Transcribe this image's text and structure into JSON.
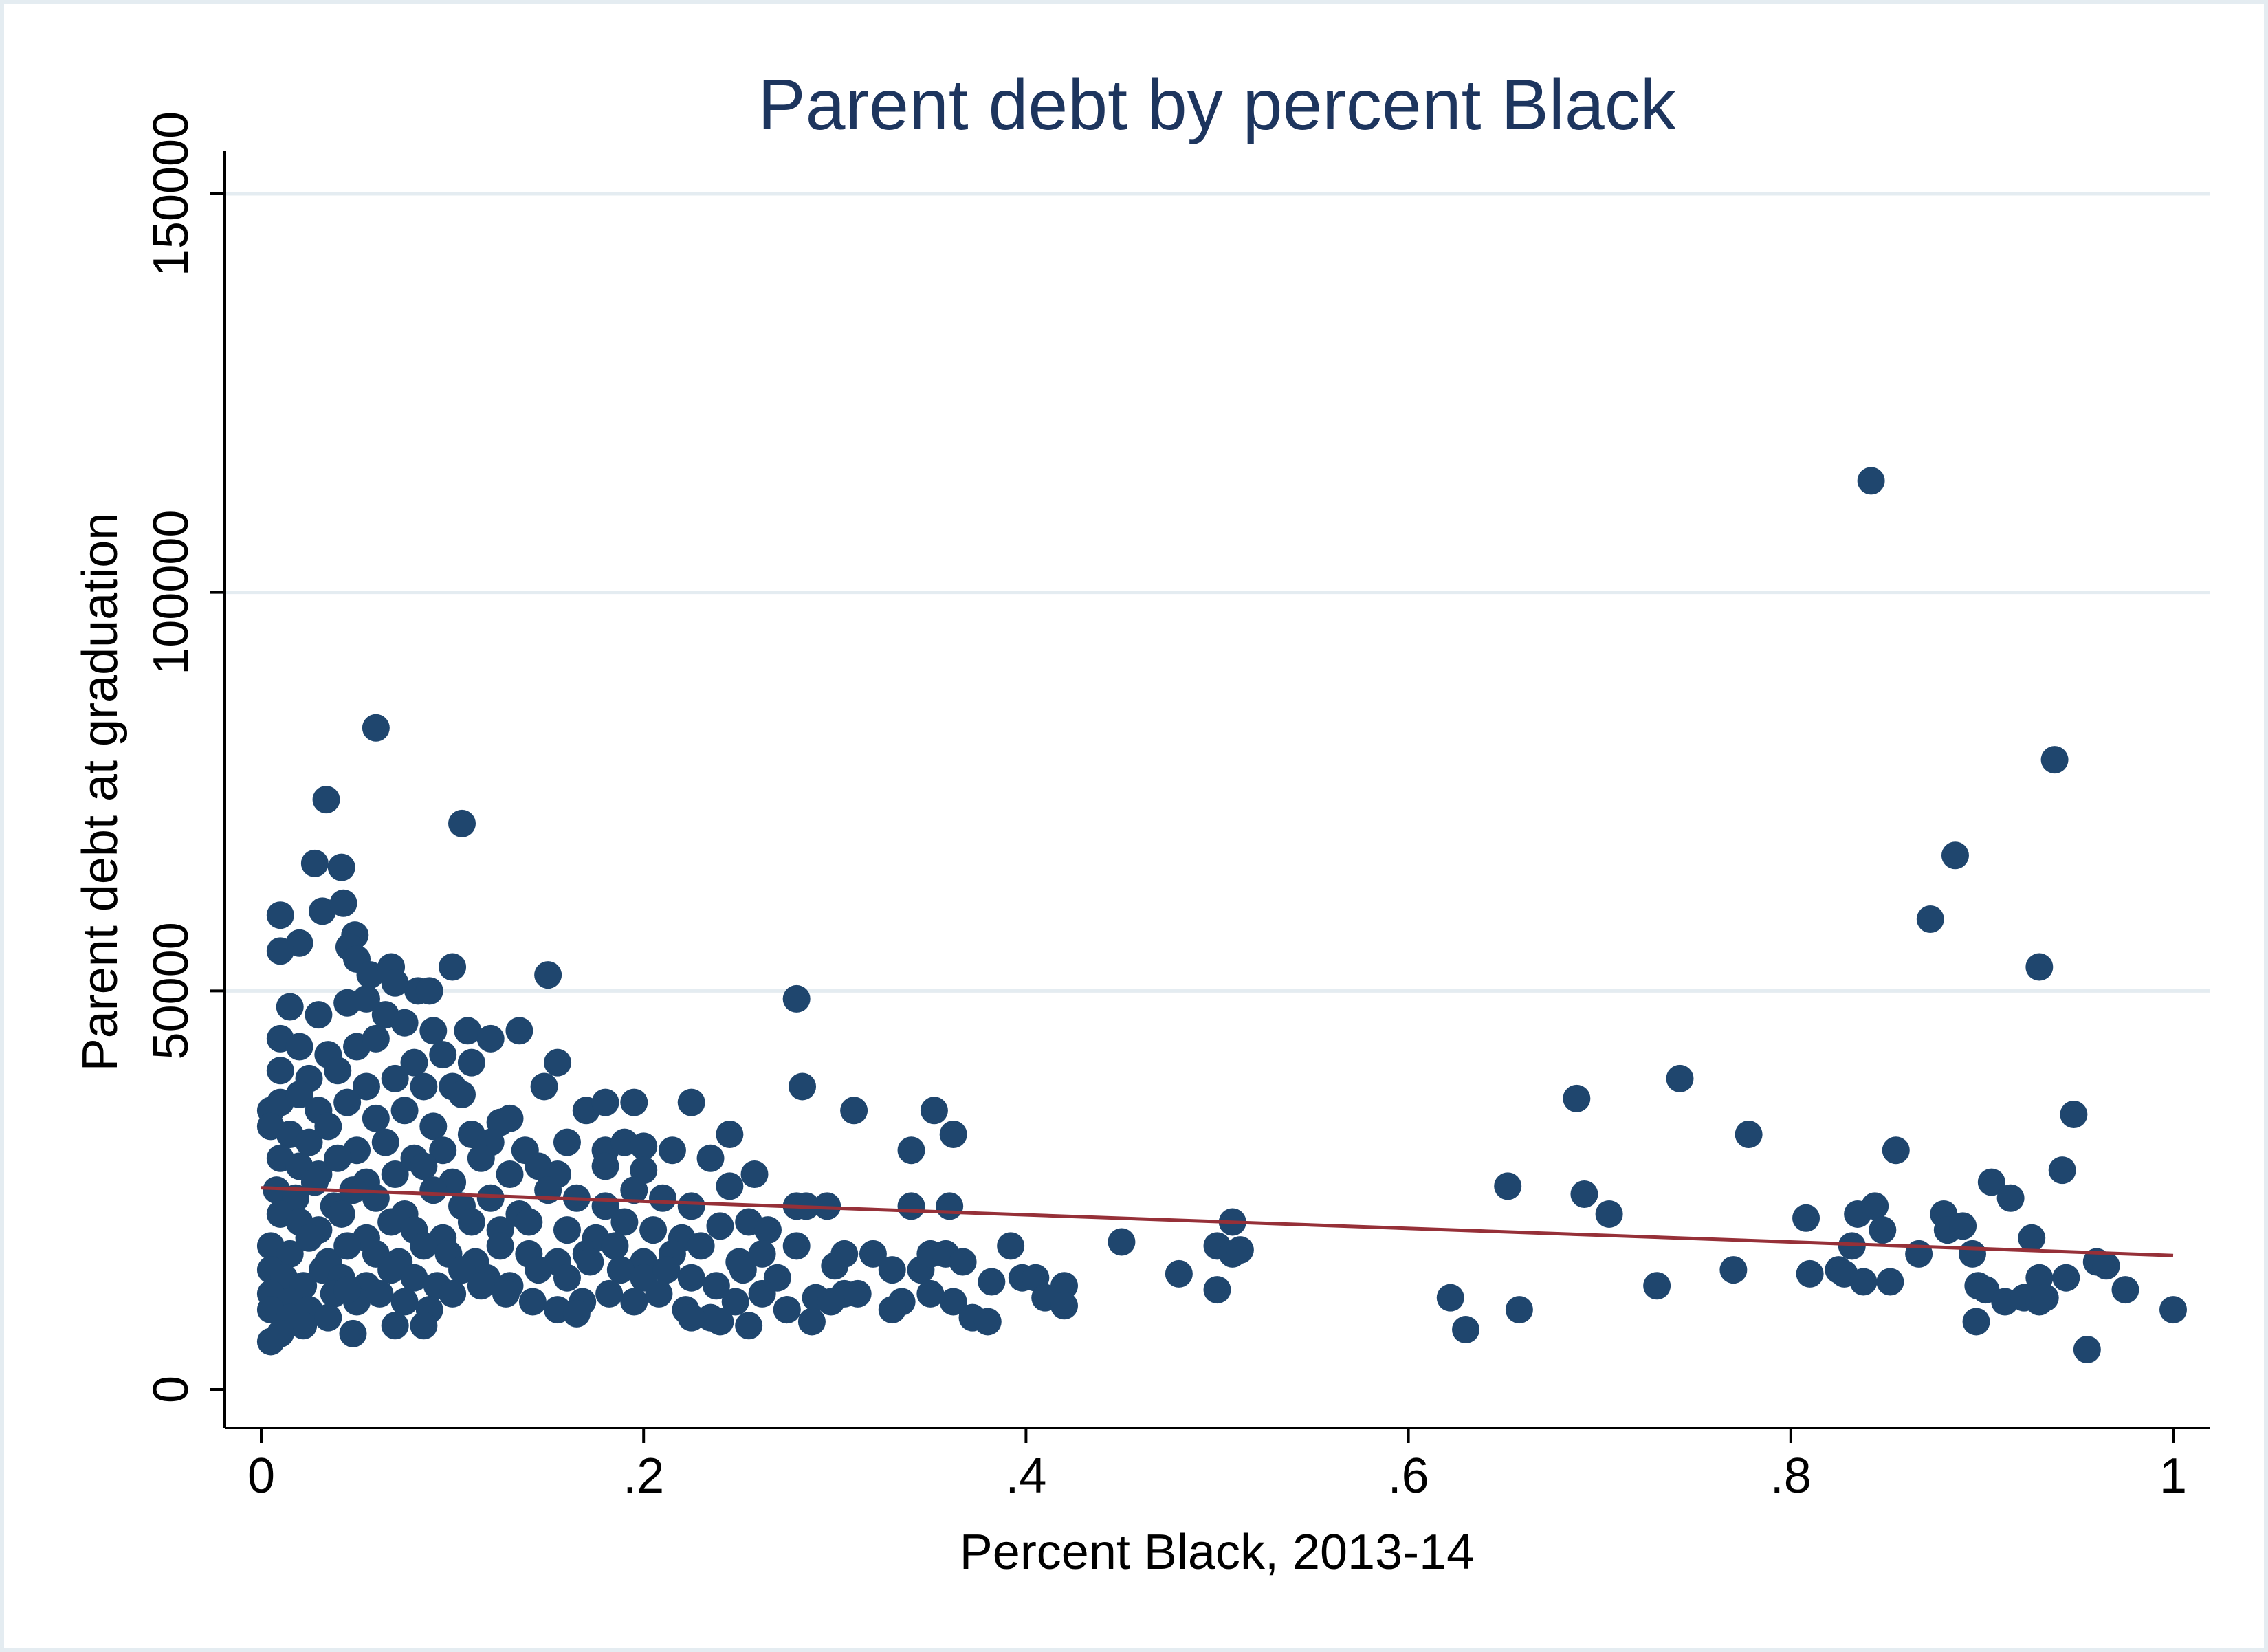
{
  "chart_data": {
    "type": "scatter",
    "title": "Parent debt by percent Black",
    "xlabel": "Percent Black, 2013-14",
    "ylabel": "Parent debt at graduation",
    "xlim": [
      0,
      1
    ],
    "ylim": [
      0,
      150000
    ],
    "x_ticks": [
      {
        "value": 0,
        "label": "0"
      },
      {
        "value": 0.2,
        "label": ".2"
      },
      {
        "value": 0.4,
        "label": ".4"
      },
      {
        "value": 0.6,
        "label": ".6"
      },
      {
        "value": 0.8,
        "label": ".8"
      },
      {
        "value": 1,
        "label": "1"
      }
    ],
    "y_ticks": [
      {
        "value": 0,
        "label": "0"
      },
      {
        "value": 50000,
        "label": "50000"
      },
      {
        "value": 100000,
        "label": "100000"
      },
      {
        "value": 150000,
        "label": "150000"
      }
    ],
    "grid": "horizontal",
    "legend": "none",
    "fit_line": {
      "type": "linear",
      "x": [
        0,
        1
      ],
      "y": [
        25300,
        16800
      ]
    },
    "colors": {
      "points": "#1f466e",
      "fit_line": "#963038",
      "title": "#1d355e",
      "grid": "#e4ecf1",
      "frame": "#e4ecf1"
    },
    "points": [
      [
        0.06,
        83000
      ],
      [
        0.105,
        71000
      ],
      [
        0.034,
        74000
      ],
      [
        0.028,
        66000
      ],
      [
        0.042,
        65500
      ],
      [
        0.032,
        60000
      ],
      [
        0.043,
        61000
      ],
      [
        0.01,
        59500
      ],
      [
        0.049,
        57000
      ],
      [
        0.02,
        56000
      ],
      [
        0.01,
        55000
      ],
      [
        0.046,
        55500
      ],
      [
        0.05,
        54000
      ],
      [
        0.057,
        52000
      ],
      [
        0.068,
        53000
      ],
      [
        0.07,
        51000
      ],
      [
        0.082,
        50000
      ],
      [
        0.088,
        50000
      ],
      [
        0.1,
        53000
      ],
      [
        0.15,
        52000
      ],
      [
        0.015,
        48000
      ],
      [
        0.03,
        47000
      ],
      [
        0.045,
        48500
      ],
      [
        0.055,
        49000
      ],
      [
        0.065,
        47000
      ],
      [
        0.075,
        46000
      ],
      [
        0.09,
        45000
      ],
      [
        0.108,
        45000
      ],
      [
        0.12,
        44000
      ],
      [
        0.135,
        45000
      ],
      [
        0.01,
        44000
      ],
      [
        0.02,
        43000
      ],
      [
        0.035,
        42000
      ],
      [
        0.05,
        43000
      ],
      [
        0.06,
        44000
      ],
      [
        0.08,
        41000
      ],
      [
        0.095,
        42000
      ],
      [
        0.11,
        41000
      ],
      [
        0.155,
        41000
      ],
      [
        0.01,
        40000
      ],
      [
        0.025,
        39000
      ],
      [
        0.04,
        40000
      ],
      [
        0.055,
        38000
      ],
      [
        0.07,
        39000
      ],
      [
        0.085,
        38000
      ],
      [
        0.1,
        38000
      ],
      [
        0.105,
        37000
      ],
      [
        0.148,
        38000
      ],
      [
        0.005,
        35000
      ],
      [
        0.01,
        36000
      ],
      [
        0.02,
        37000
      ],
      [
        0.03,
        35000
      ],
      [
        0.045,
        36000
      ],
      [
        0.06,
        34000
      ],
      [
        0.075,
        35000
      ],
      [
        0.09,
        33000
      ],
      [
        0.125,
        33500
      ],
      [
        0.13,
        34000
      ],
      [
        0.17,
        35000
      ],
      [
        0.18,
        36000
      ],
      [
        0.195,
        36000
      ],
      [
        0.225,
        36000
      ],
      [
        0.005,
        33000
      ],
      [
        0.015,
        32000
      ],
      [
        0.025,
        31000
      ],
      [
        0.035,
        33000
      ],
      [
        0.05,
        30000
      ],
      [
        0.065,
        31000
      ],
      [
        0.08,
        29000
      ],
      [
        0.095,
        30000
      ],
      [
        0.11,
        32000
      ],
      [
        0.12,
        31000
      ],
      [
        0.138,
        30000
      ],
      [
        0.16,
        31000
      ],
      [
        0.18,
        30000
      ],
      [
        0.19,
        31000
      ],
      [
        0.2,
        30500
      ],
      [
        0.215,
        30000
      ],
      [
        0.245,
        32000
      ],
      [
        0.01,
        29000
      ],
      [
        0.02,
        28000
      ],
      [
        0.03,
        27000
      ],
      [
        0.04,
        29000
      ],
      [
        0.055,
        26000
      ],
      [
        0.07,
        27000
      ],
      [
        0.085,
        28000
      ],
      [
        0.1,
        26000
      ],
      [
        0.115,
        29000
      ],
      [
        0.13,
        27000
      ],
      [
        0.145,
        28000
      ],
      [
        0.155,
        27000
      ],
      [
        0.18,
        28000
      ],
      [
        0.2,
        27500
      ],
      [
        0.235,
        29000
      ],
      [
        0.258,
        27000
      ],
      [
        0.008,
        25000
      ],
      [
        0.018,
        24000
      ],
      [
        0.028,
        26000
      ],
      [
        0.038,
        23000
      ],
      [
        0.048,
        25000
      ],
      [
        0.06,
        24000
      ],
      [
        0.075,
        22000
      ],
      [
        0.09,
        25000
      ],
      [
        0.105,
        23000
      ],
      [
        0.12,
        24000
      ],
      [
        0.135,
        22000
      ],
      [
        0.15,
        25000
      ],
      [
        0.165,
        24000
      ],
      [
        0.18,
        23000
      ],
      [
        0.195,
        25000
      ],
      [
        0.21,
        24000
      ],
      [
        0.225,
        23000
      ],
      [
        0.245,
        25500
      ],
      [
        0.28,
        23000
      ],
      [
        0.01,
        22000
      ],
      [
        0.02,
        21000
      ],
      [
        0.03,
        20000
      ],
      [
        0.042,
        22000
      ],
      [
        0.055,
        19000
      ],
      [
        0.068,
        21000
      ],
      [
        0.08,
        20000
      ],
      [
        0.095,
        19000
      ],
      [
        0.11,
        21000
      ],
      [
        0.125,
        20000
      ],
      [
        0.14,
        21000
      ],
      [
        0.16,
        20000
      ],
      [
        0.175,
        19000
      ],
      [
        0.19,
        21000
      ],
      [
        0.205,
        20000
      ],
      [
        0.22,
        19000
      ],
      [
        0.24,
        20500
      ],
      [
        0.255,
        21000
      ],
      [
        0.265,
        20000
      ],
      [
        0.005,
        18000
      ],
      [
        0.015,
        17000
      ],
      [
        0.025,
        19000
      ],
      [
        0.035,
        16000
      ],
      [
        0.045,
        18000
      ],
      [
        0.06,
        17000
      ],
      [
        0.072,
        16000
      ],
      [
        0.085,
        18000
      ],
      [
        0.098,
        17000
      ],
      [
        0.112,
        16000
      ],
      [
        0.125,
        18000
      ],
      [
        0.14,
        17000
      ],
      [
        0.155,
        16000
      ],
      [
        0.17,
        17000
      ],
      [
        0.185,
        18000
      ],
      [
        0.2,
        16000
      ],
      [
        0.215,
        17000
      ],
      [
        0.23,
        18000
      ],
      [
        0.25,
        16000
      ],
      [
        0.262,
        17000
      ],
      [
        0.28,
        18000
      ],
      [
        0.305,
        17000
      ],
      [
        0.32,
        17000
      ],
      [
        0.005,
        15000
      ],
      [
        0.012,
        14000
      ],
      [
        0.022,
        13000
      ],
      [
        0.032,
        15000
      ],
      [
        0.042,
        14000
      ],
      [
        0.055,
        13000
      ],
      [
        0.068,
        15000
      ],
      [
        0.08,
        14000
      ],
      [
        0.092,
        13000
      ],
      [
        0.105,
        15000
      ],
      [
        0.118,
        14000
      ],
      [
        0.13,
        13000
      ],
      [
        0.145,
        15000
      ],
      [
        0.16,
        14000
      ],
      [
        0.172,
        16000
      ],
      [
        0.188,
        15000
      ],
      [
        0.2,
        14000
      ],
      [
        0.212,
        15000
      ],
      [
        0.225,
        14000
      ],
      [
        0.238,
        13000
      ],
      [
        0.252,
        15000
      ],
      [
        0.27,
        14000
      ],
      [
        0.3,
        15500
      ],
      [
        0.33,
        15000
      ],
      [
        0.005,
        12000
      ],
      [
        0.015,
        11000
      ],
      [
        0.025,
        10000
      ],
      [
        0.038,
        12000
      ],
      [
        0.05,
        11000
      ],
      [
        0.062,
        12000
      ],
      [
        0.075,
        11000
      ],
      [
        0.088,
        10000
      ],
      [
        0.1,
        12000
      ],
      [
        0.115,
        13000
      ],
      [
        0.128,
        12000
      ],
      [
        0.142,
        11000
      ],
      [
        0.155,
        10000
      ],
      [
        0.168,
        11000
      ],
      [
        0.182,
        12000
      ],
      [
        0.195,
        11000
      ],
      [
        0.208,
        12000
      ],
      [
        0.222,
        10000
      ],
      [
        0.235,
        9000
      ],
      [
        0.248,
        11000
      ],
      [
        0.262,
        12000
      ],
      [
        0.275,
        10000
      ],
      [
        0.29,
        11500
      ],
      [
        0.305,
        12000
      ],
      [
        0.005,
        10000
      ],
      [
        0.015,
        9000
      ],
      [
        0.022,
        8000
      ],
      [
        0.048,
        7000
      ],
      [
        0.07,
        8000
      ],
      [
        0.085,
        8000
      ],
      [
        0.165,
        9500
      ],
      [
        0.225,
        9000
      ],
      [
        0.24,
        8500
      ],
      [
        0.255,
        8000
      ],
      [
        0.275,
        10000
      ],
      [
        0.288,
        8500
      ],
      [
        0.005,
        6000
      ],
      [
        0.01,
        7000
      ],
      [
        0.035,
        9000
      ],
      [
        0.045,
        12500
      ],
      [
        0.28,
        49000
      ],
      [
        0.283,
        38000
      ],
      [
        0.31,
        35000
      ],
      [
        0.352,
        35000
      ],
      [
        0.34,
        30000
      ],
      [
        0.362,
        32000
      ],
      [
        0.34,
        23000
      ],
      [
        0.36,
        23000
      ],
      [
        0.285,
        23000
      ],
      [
        0.296,
        23000
      ],
      [
        0.345,
        15000
      ],
      [
        0.35,
        17000
      ],
      [
        0.358,
        17000
      ],
      [
        0.367,
        16000
      ],
      [
        0.35,
        12000
      ],
      [
        0.362,
        11000
      ],
      [
        0.372,
        9000
      ],
      [
        0.38,
        8500
      ],
      [
        0.382,
        13500
      ],
      [
        0.392,
        18000
      ],
      [
        0.398,
        14000
      ],
      [
        0.405,
        14000
      ],
      [
        0.42,
        13000
      ],
      [
        0.41,
        11500
      ],
      [
        0.42,
        10500
      ],
      [
        0.45,
        18500
      ],
      [
        0.48,
        14500
      ],
      [
        0.5,
        18000
      ],
      [
        0.508,
        17000
      ],
      [
        0.512,
        17500
      ],
      [
        0.508,
        21000
      ],
      [
        0.5,
        12500
      ],
      [
        0.335,
        11000
      ],
      [
        0.33,
        10000
      ],
      [
        0.312,
        12000
      ],
      [
        0.298,
        11000
      ],
      [
        0.622,
        11500
      ],
      [
        0.63,
        7500
      ],
      [
        0.658,
        10000
      ],
      [
        0.652,
        25500
      ],
      [
        0.688,
        36500
      ],
      [
        0.692,
        24500
      ],
      [
        0.705,
        22000
      ],
      [
        0.73,
        13000
      ],
      [
        0.742,
        39000
      ],
      [
        0.77,
        15000
      ],
      [
        0.778,
        32000
      ],
      [
        0.808,
        21500
      ],
      [
        0.81,
        14500
      ],
      [
        0.825,
        15000
      ],
      [
        0.828,
        14500
      ],
      [
        0.832,
        18000
      ],
      [
        0.835,
        22000
      ],
      [
        0.838,
        13500
      ],
      [
        0.842,
        114000
      ],
      [
        0.844,
        23000
      ],
      [
        0.848,
        20000
      ],
      [
        0.852,
        13500
      ],
      [
        0.855,
        30000
      ],
      [
        0.867,
        17000
      ],
      [
        0.873,
        59000
      ],
      [
        0.88,
        22000
      ],
      [
        0.882,
        20000
      ],
      [
        0.886,
        67000
      ],
      [
        0.89,
        20500
      ],
      [
        0.895,
        17000
      ],
      [
        0.897,
        8500
      ],
      [
        0.898,
        13000
      ],
      [
        0.902,
        12500
      ],
      [
        0.905,
        26000
      ],
      [
        0.912,
        11000
      ],
      [
        0.915,
        24000
      ],
      [
        0.922,
        11500
      ],
      [
        0.926,
        19000
      ],
      [
        0.93,
        53000
      ],
      [
        0.93,
        14000
      ],
      [
        0.93,
        11000
      ],
      [
        0.933,
        11500
      ],
      [
        0.938,
        79000
      ],
      [
        0.942,
        27500
      ],
      [
        0.944,
        14000
      ],
      [
        0.948,
        34500
      ],
      [
        0.955,
        5000
      ],
      [
        0.96,
        16000
      ],
      [
        0.965,
        15500
      ],
      [
        0.975,
        12500
      ],
      [
        1.0,
        10000
      ]
    ]
  }
}
